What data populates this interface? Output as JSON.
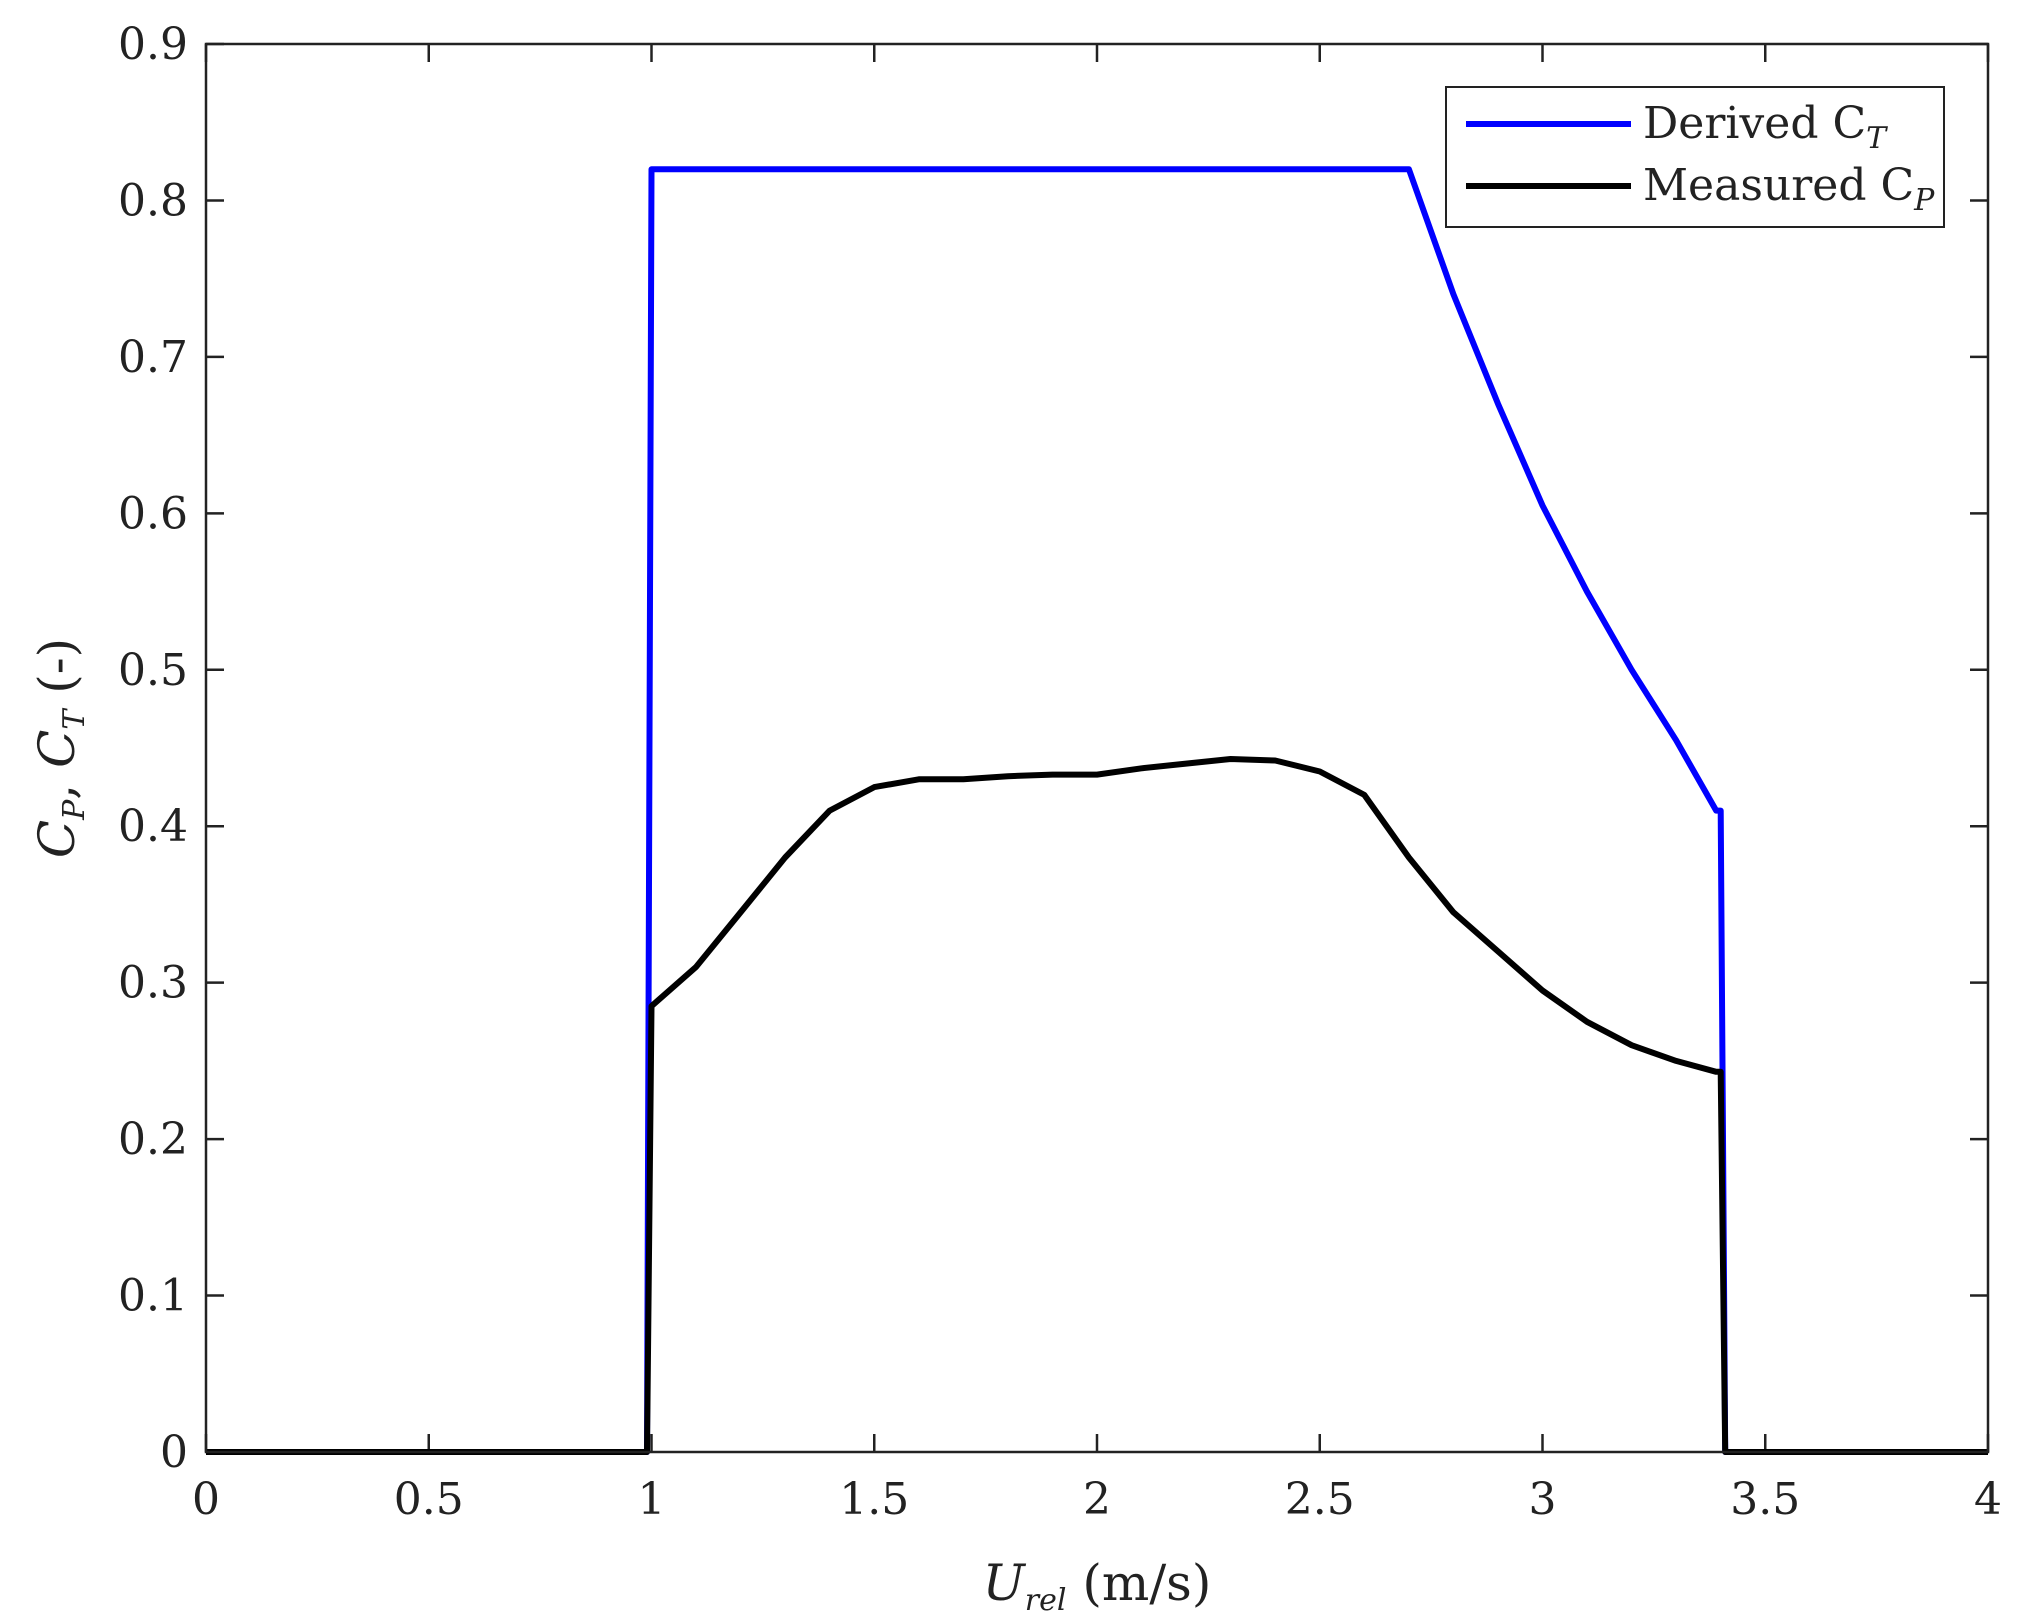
{
  "chart_data": {
    "type": "line",
    "xlabel": {
      "main": "U",
      "sub": "rel",
      "unit": " (m/s)"
    },
    "ylabel": {
      "a_main": "C",
      "a_sub": "P",
      "sep": ", ",
      "b_main": "C",
      "b_sub": "T",
      "unit": " (-)"
    },
    "xlim": [
      0,
      4
    ],
    "ylim": [
      0,
      0.9
    ],
    "xticks": [
      0,
      0.5,
      1,
      1.5,
      2,
      2.5,
      3,
      3.5,
      4
    ],
    "xtick_labels": [
      "0",
      "0.5",
      "1",
      "1.5",
      "2",
      "2.5",
      "3",
      "3.5",
      "4"
    ],
    "yticks": [
      0,
      0.1,
      0.2,
      0.3,
      0.4,
      0.5,
      0.6,
      0.7,
      0.8,
      0.9
    ],
    "ytick_labels": [
      "0",
      "0.1",
      "0.2",
      "0.3",
      "0.4",
      "0.5",
      "0.6",
      "0.7",
      "0.8",
      "0.9"
    ],
    "grid": false,
    "legend_position": "top-right",
    "series": [
      {
        "name": "Derived C_T",
        "legend_main": "Derived C",
        "legend_sub": "T",
        "color": "#0000ff",
        "x": [
          0,
          0.99,
          1.0,
          1.5,
          2.0,
          2.5,
          2.7,
          2.8,
          2.9,
          3.0,
          3.1,
          3.2,
          3.3,
          3.39,
          3.4,
          3.41,
          4.0
        ],
        "y": [
          0,
          0,
          0.82,
          0.82,
          0.82,
          0.82,
          0.82,
          0.74,
          0.67,
          0.605,
          0.55,
          0.5,
          0.455,
          0.41,
          0.41,
          0,
          0
        ]
      },
      {
        "name": "Measured C_P",
        "legend_main": "Measured C",
        "legend_sub": "P",
        "color": "#000000",
        "x": [
          0,
          0.99,
          1.0,
          1.1,
          1.2,
          1.3,
          1.4,
          1.5,
          1.6,
          1.7,
          1.8,
          1.9,
          2.0,
          2.1,
          2.2,
          2.3,
          2.4,
          2.5,
          2.6,
          2.7,
          2.8,
          2.9,
          3.0,
          3.1,
          3.2,
          3.3,
          3.39,
          3.4,
          3.41,
          4.0
        ],
        "y": [
          0,
          0,
          0.285,
          0.31,
          0.345,
          0.38,
          0.41,
          0.425,
          0.43,
          0.43,
          0.432,
          0.433,
          0.433,
          0.437,
          0.44,
          0.443,
          0.442,
          0.435,
          0.42,
          0.38,
          0.345,
          0.32,
          0.295,
          0.275,
          0.26,
          0.25,
          0.243,
          0.243,
          0,
          0
        ]
      }
    ]
  }
}
